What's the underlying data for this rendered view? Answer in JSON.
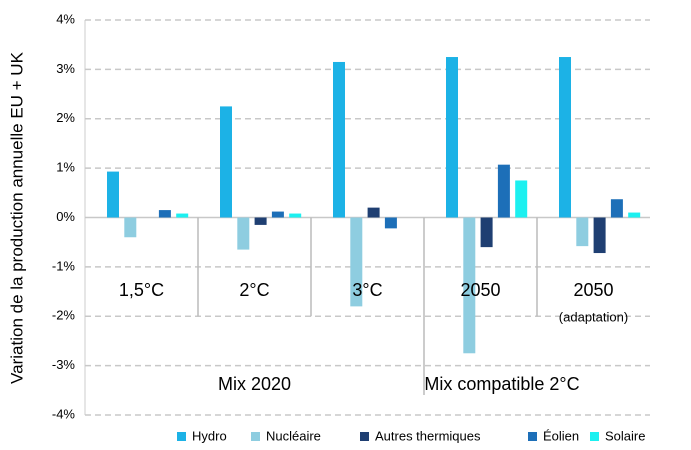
{
  "chart_data": {
    "type": "bar",
    "y_axis_label": "Variation de la production annuelle EU + UK",
    "categories": [
      "1,5°C",
      "2°C",
      "3°C",
      "2050",
      "2050"
    ],
    "category_note": "(adaptation)",
    "groups": [
      "Mix 2020",
      "Mix compatible 2°C"
    ],
    "series": [
      {
        "name": "Hydro",
        "color": "#1cb2e6",
        "values": [
          0.93,
          2.25,
          3.15,
          3.25,
          3.25
        ]
      },
      {
        "name": "Nucléaire",
        "color": "#8ecde0",
        "values": [
          -0.4,
          -0.65,
          -1.8,
          -2.75,
          -0.58
        ]
      },
      {
        "name": "Autres thermiques",
        "color": "#1f3f72",
        "values": [
          0,
          -0.15,
          0.2,
          -0.6,
          -0.72
        ]
      },
      {
        "name": "Éolien",
        "color": "#1d6fb8",
        "values": [
          0.15,
          0.12,
          -0.22,
          1.07,
          0.37
        ]
      },
      {
        "name": "Solaire",
        "color": "#1cf0f0",
        "values": [
          0.08,
          0.08,
          0,
          0.75,
          0.1
        ]
      }
    ],
    "ylim": [
      -4,
      4
    ],
    "yticks": [
      {
        "value": -4,
        "label": "-4%"
      },
      {
        "value": -3,
        "label": "-3%"
      },
      {
        "value": -2,
        "label": "-2%"
      },
      {
        "value": -1,
        "label": "-1%"
      },
      {
        "value": 0,
        "label": "0%"
      },
      {
        "value": 1,
        "label": "1%"
      },
      {
        "value": 2,
        "label": "2%"
      },
      {
        "value": 3,
        "label": "3%"
      },
      {
        "value": 4,
        "label": "4%"
      }
    ],
    "grid": true,
    "legend": "bottom"
  }
}
